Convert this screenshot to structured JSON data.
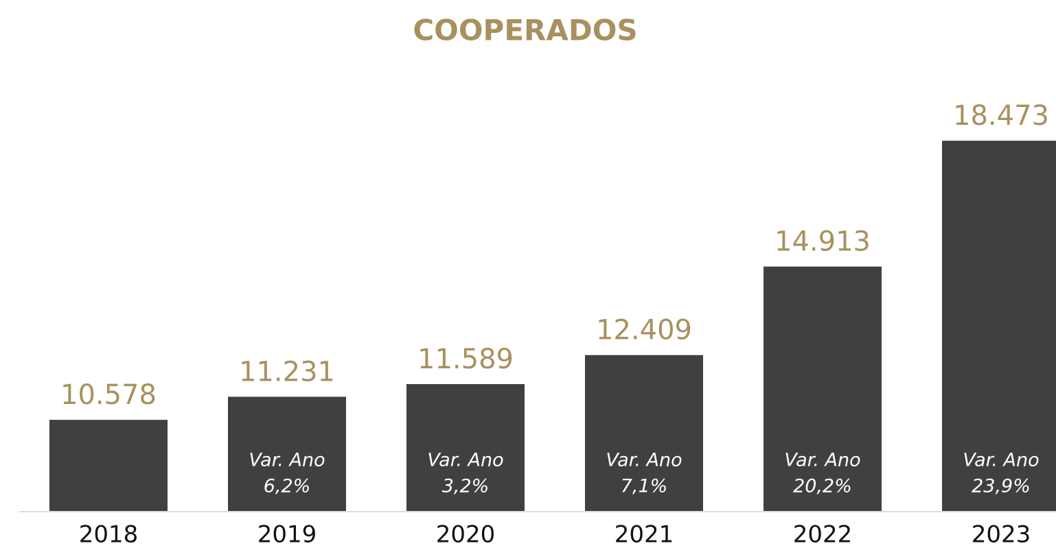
{
  "chart_data": {
    "type": "bar",
    "title": "COOPERADOS",
    "categories": [
      "2018",
      "2019",
      "2020",
      "2021",
      "2022",
      "2023"
    ],
    "values": [
      10578,
      11231,
      11589,
      12409,
      14913,
      18473
    ],
    "value_labels": [
      "10.578",
      "11.231",
      "11.589",
      "12.409",
      "14.913",
      "18.473"
    ],
    "variation_title": "Var. Ano",
    "variation_labels": [
      null,
      "6,2%",
      "3,2%",
      "7,1%",
      "20,2%",
      "23,9%"
    ],
    "ylim": [
      8000,
      19000
    ],
    "color": "#404040",
    "label_color": "#a8915e"
  }
}
